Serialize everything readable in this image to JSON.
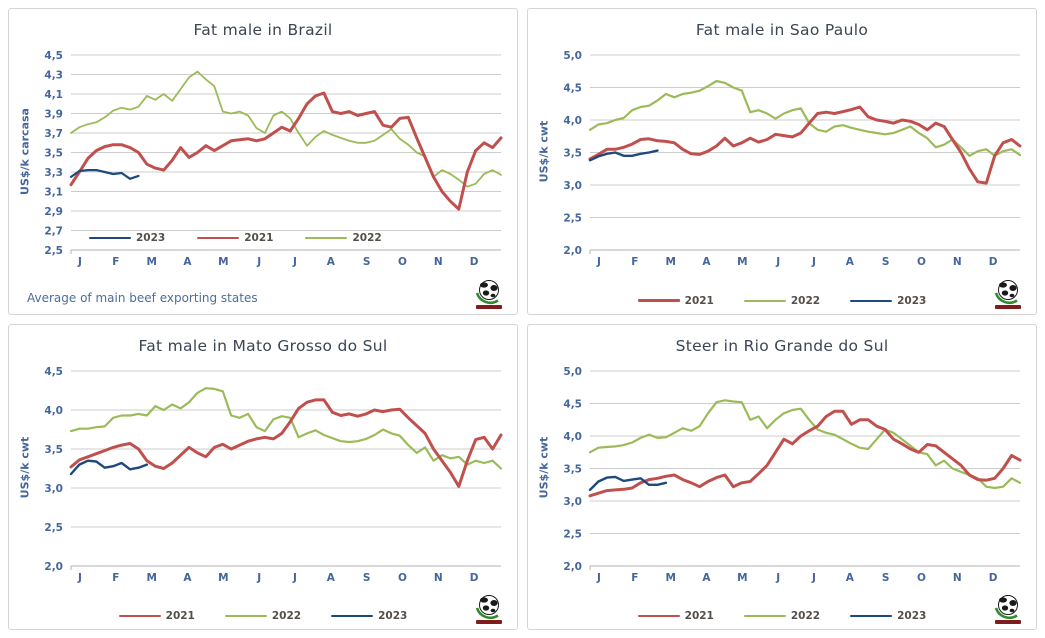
{
  "page": {
    "background": "#ffffff"
  },
  "colors": {
    "series_2021": "#C0504D",
    "series_2022": "#9BBB59",
    "series_2023": "#1F497D",
    "gridline": "#cccccc",
    "axis_line": "#b3b3b3",
    "axis_text": "#44669c",
    "title_text": "#3c4554",
    "legend_text": "#554f49"
  },
  "chart_data": [
    {
      "type": "line",
      "title": "Fat male in Brazil",
      "ylabel": "US$/k carcasa",
      "ylim": [
        2.5,
        4.5
      ],
      "yticks": [
        "4,5",
        "4,3",
        "4,1",
        "3,9",
        "3,7",
        "3,5",
        "3,3",
        "3,1",
        "2,9",
        "2,7",
        "2,5"
      ],
      "x_months": [
        "J",
        "F",
        "M",
        "A",
        "M",
        "J",
        "J",
        "A",
        "S",
        "O",
        "N",
        "D"
      ],
      "legend_position": "inside-left",
      "footnote": "Average  of main beef exporting states",
      "grid": true,
      "series": [
        {
          "name": "2023",
          "color": "#1F497D",
          "width": 2.2,
          "z": 3,
          "values": [
            3.25,
            3.31,
            3.32,
            3.32,
            3.3,
            3.28,
            3.29,
            3.23,
            3.26
          ]
        },
        {
          "name": "2021",
          "color": "#C0504D",
          "width": 3,
          "z": 2,
          "values": [
            3.17,
            3.3,
            3.44,
            3.52,
            3.56,
            3.58,
            3.58,
            3.55,
            3.5,
            3.38,
            3.34,
            3.32,
            3.42,
            3.55,
            3.45,
            3.5,
            3.57,
            3.52,
            3.57,
            3.62,
            3.63,
            3.64,
            3.62,
            3.64,
            3.7,
            3.76,
            3.72,
            3.85,
            4.0,
            4.08,
            4.11,
            3.92,
            3.9,
            3.92,
            3.88,
            3.9,
            3.92,
            3.78,
            3.76,
            3.85,
            3.86,
            3.65,
            3.45,
            3.25,
            3.1,
            3.0,
            2.92,
            3.3,
            3.52,
            3.6,
            3.55,
            3.65
          ]
        },
        {
          "name": "2022",
          "color": "#9BBB59",
          "width": 1.8,
          "z": 1,
          "values": [
            3.7,
            3.76,
            3.79,
            3.81,
            3.86,
            3.93,
            3.96,
            3.94,
            3.97,
            4.08,
            4.04,
            4.1,
            4.03,
            4.15,
            4.27,
            4.33,
            4.25,
            4.18,
            3.92,
            3.9,
            3.92,
            3.88,
            3.75,
            3.7,
            3.88,
            3.92,
            3.85,
            3.7,
            3.57,
            3.66,
            3.72,
            3.68,
            3.65,
            3.62,
            3.6,
            3.6,
            3.62,
            3.68,
            3.74,
            3.64,
            3.58,
            3.5,
            3.46,
            3.25,
            3.32,
            3.28,
            3.22,
            3.15,
            3.18,
            3.28,
            3.32,
            3.27
          ]
        }
      ]
    },
    {
      "type": "line",
      "title": "Fat male in Sao Paulo",
      "ylabel": "US$/k cwt",
      "ylim": [
        2.0,
        5.0
      ],
      "yticks": [
        "5,0",
        "4,5",
        "4,0",
        "3,5",
        "3,0",
        "2,5",
        "2,0"
      ],
      "x_months": [
        "J",
        "F",
        "M",
        "A",
        "M",
        "J",
        "J",
        "A",
        "S",
        "O",
        "N",
        "D"
      ],
      "legend_position": "bottom",
      "footnote": "",
      "grid": true,
      "series": [
        {
          "name": "2021",
          "color": "#C0504D",
          "width": 3,
          "z": 2,
          "values": [
            3.4,
            3.47,
            3.55,
            3.55,
            3.58,
            3.63,
            3.7,
            3.71,
            3.68,
            3.67,
            3.65,
            3.55,
            3.48,
            3.47,
            3.52,
            3.6,
            3.72,
            3.6,
            3.65,
            3.72,
            3.66,
            3.7,
            3.78,
            3.76,
            3.74,
            3.8,
            3.95,
            4.1,
            4.12,
            4.1,
            4.13,
            4.16,
            4.2,
            4.05,
            4.0,
            3.98,
            3.95,
            4.0,
            3.98,
            3.93,
            3.85,
            3.95,
            3.9,
            3.7,
            3.5,
            3.25,
            3.05,
            3.03,
            3.45,
            3.65,
            3.7,
            3.6
          ]
        },
        {
          "name": "2022",
          "color": "#9BBB59",
          "width": 2.2,
          "z": 1,
          "values": [
            3.85,
            3.93,
            3.95,
            4.0,
            4.03,
            4.15,
            4.2,
            4.22,
            4.3,
            4.4,
            4.35,
            4.4,
            4.42,
            4.45,
            4.52,
            4.6,
            4.57,
            4.5,
            4.45,
            4.12,
            4.15,
            4.1,
            4.02,
            4.1,
            4.15,
            4.18,
            3.95,
            3.85,
            3.82,
            3.9,
            3.92,
            3.88,
            3.85,
            3.82,
            3.8,
            3.78,
            3.8,
            3.85,
            3.9,
            3.8,
            3.72,
            3.58,
            3.62,
            3.7,
            3.58,
            3.45,
            3.52,
            3.55,
            3.45,
            3.52,
            3.55,
            3.46
          ]
        },
        {
          "name": "2023",
          "color": "#1F497D",
          "width": 2.4,
          "z": 3,
          "values": [
            3.38,
            3.44,
            3.48,
            3.5,
            3.45,
            3.45,
            3.48,
            3.5,
            3.53
          ]
        }
      ]
    },
    {
      "type": "line",
      "title": "Fat male in Mato Grosso do Sul",
      "ylabel": "US$/k cwt",
      "ylim": [
        2.0,
        4.5
      ],
      "yticks": [
        "4,5",
        "4,0",
        "3,5",
        "3,0",
        "2,5",
        "2,0"
      ],
      "x_months": [
        "J",
        "F",
        "M",
        "A",
        "M",
        "J",
        "J",
        "A",
        "S",
        "O",
        "N",
        "D"
      ],
      "legend_position": "bottom",
      "footnote": "",
      "grid": true,
      "series": [
        {
          "name": "2021",
          "color": "#C0504D",
          "width": 3,
          "z": 2,
          "values": [
            3.27,
            3.36,
            3.4,
            3.44,
            3.48,
            3.52,
            3.55,
            3.57,
            3.5,
            3.35,
            3.28,
            3.25,
            3.32,
            3.42,
            3.52,
            3.45,
            3.4,
            3.52,
            3.56,
            3.5,
            3.55,
            3.6,
            3.63,
            3.65,
            3.63,
            3.7,
            3.85,
            4.02,
            4.1,
            4.13,
            4.13,
            3.97,
            3.93,
            3.95,
            3.92,
            3.95,
            4.0,
            3.98,
            4.0,
            4.01,
            3.9,
            3.8,
            3.7,
            3.5,
            3.35,
            3.2,
            3.02,
            3.35,
            3.62,
            3.65,
            3.5,
            3.68
          ]
        },
        {
          "name": "2022",
          "color": "#9BBB59",
          "width": 2.2,
          "z": 1,
          "values": [
            3.73,
            3.76,
            3.76,
            3.78,
            3.79,
            3.9,
            3.93,
            3.93,
            3.95,
            3.93,
            4.05,
            4.0,
            4.07,
            4.02,
            4.1,
            4.22,
            4.28,
            4.27,
            4.24,
            3.93,
            3.9,
            3.95,
            3.78,
            3.73,
            3.88,
            3.92,
            3.9,
            3.65,
            3.7,
            3.74,
            3.68,
            3.64,
            3.6,
            3.59,
            3.6,
            3.63,
            3.68,
            3.75,
            3.7,
            3.67,
            3.55,
            3.45,
            3.52,
            3.35,
            3.42,
            3.38,
            3.4,
            3.3,
            3.35,
            3.32,
            3.35,
            3.25
          ]
        },
        {
          "name": "2023",
          "color": "#1F497D",
          "width": 2.4,
          "z": 3,
          "values": [
            3.18,
            3.3,
            3.35,
            3.34,
            3.26,
            3.28,
            3.32,
            3.24,
            3.26,
            3.3
          ]
        }
      ]
    },
    {
      "type": "line",
      "title": "Steer  in Rio Grande do Sul",
      "ylabel": "US$/k cwt",
      "ylim": [
        2.0,
        5.0
      ],
      "yticks": [
        "5,0",
        "4,5",
        "4,0",
        "3,5",
        "3,0",
        "2,5",
        "2,0"
      ],
      "x_months": [
        "J",
        "F",
        "M",
        "A",
        "M",
        "J",
        "J",
        "A",
        "S",
        "O",
        "N",
        "D"
      ],
      "legend_position": "bottom",
      "footnote": "",
      "grid": true,
      "series": [
        {
          "name": "2021",
          "color": "#C0504D",
          "width": 3,
          "z": 2,
          "values": [
            3.08,
            3.12,
            3.16,
            3.17,
            3.18,
            3.2,
            3.28,
            3.33,
            3.35,
            3.38,
            3.4,
            3.33,
            3.28,
            3.22,
            3.3,
            3.36,
            3.4,
            3.22,
            3.28,
            3.3,
            3.42,
            3.55,
            3.75,
            3.95,
            3.88,
            4.0,
            4.08,
            4.15,
            4.3,
            4.38,
            4.38,
            4.18,
            4.25,
            4.25,
            4.15,
            4.1,
            3.95,
            3.88,
            3.8,
            3.75,
            3.87,
            3.85,
            3.75,
            3.65,
            3.55,
            3.4,
            3.33,
            3.32,
            3.35,
            3.5,
            3.7,
            3.63
          ]
        },
        {
          "name": "2022",
          "color": "#9BBB59",
          "width": 2.2,
          "z": 1,
          "values": [
            3.75,
            3.82,
            3.83,
            3.84,
            3.86,
            3.9,
            3.97,
            4.02,
            3.97,
            3.98,
            4.05,
            4.12,
            4.08,
            4.15,
            4.35,
            4.52,
            4.55,
            4.53,
            4.52,
            4.25,
            4.3,
            4.12,
            4.25,
            4.35,
            4.4,
            4.42,
            4.25,
            4.1,
            4.05,
            4.02,
            3.95,
            3.88,
            3.82,
            3.8,
            3.95,
            4.1,
            4.05,
            3.95,
            3.85,
            3.75,
            3.72,
            3.55,
            3.62,
            3.5,
            3.45,
            3.4,
            3.35,
            3.22,
            3.2,
            3.22,
            3.35,
            3.28
          ]
        },
        {
          "name": "2023",
          "color": "#1F497D",
          "width": 2.4,
          "z": 3,
          "values": [
            3.17,
            3.3,
            3.36,
            3.37,
            3.31,
            3.33,
            3.35,
            3.25,
            3.25,
            3.28
          ]
        }
      ]
    }
  ]
}
